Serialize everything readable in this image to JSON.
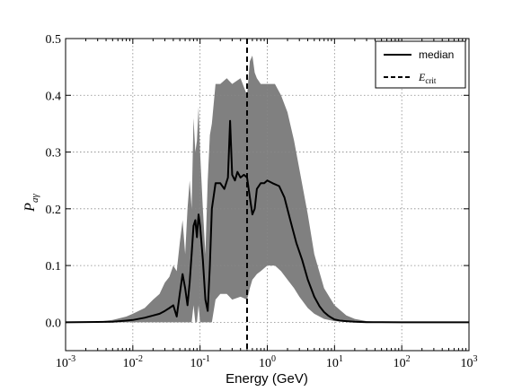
{
  "chart_data": {
    "type": "area",
    "xlabel": "Energy (GeV)",
    "ylabel": "P",
    "ylabel_sub": "aγ",
    "x_scale": "log",
    "xlim": [
      0.001,
      1000
    ],
    "ylim": [
      -0.05,
      0.5
    ],
    "y_ticks": [
      0.0,
      0.1,
      0.2,
      0.3,
      0.4,
      0.5
    ],
    "y_tick_labels": [
      "0.0",
      "0.1",
      "0.2",
      "0.3",
      "0.4",
      "0.5"
    ],
    "x_ticks": [
      0.001,
      0.01,
      0.1,
      1,
      10,
      100,
      1000
    ],
    "x_tick_labels": [
      {
        "base": "10",
        "exp": "-3"
      },
      {
        "base": "10",
        "exp": "-2"
      },
      {
        "base": "10",
        "exp": "-1"
      },
      {
        "base": "10",
        "exp": "0"
      },
      {
        "base": "10",
        "exp": "1"
      },
      {
        "base": "10",
        "exp": "2"
      },
      {
        "base": "10",
        "exp": "3"
      }
    ],
    "grid": true,
    "legend_position": "top-right",
    "legend": [
      {
        "label": "median",
        "style": "solid"
      },
      {
        "label": "E",
        "label_sub": "crit",
        "style": "dashed"
      }
    ],
    "vline_x": 0.5,
    "band_color": "#808080",
    "median": {
      "x": [
        0.001,
        0.003,
        0.005,
        0.008,
        0.01,
        0.015,
        0.02,
        0.025,
        0.03,
        0.035,
        0.04,
        0.045,
        0.05,
        0.055,
        0.06,
        0.065,
        0.07,
        0.075,
        0.08,
        0.085,
        0.09,
        0.095,
        0.1,
        0.11,
        0.12,
        0.13,
        0.14,
        0.15,
        0.17,
        0.2,
        0.23,
        0.26,
        0.28,
        0.3,
        0.33,
        0.36,
        0.4,
        0.45,
        0.5,
        0.55,
        0.6,
        0.65,
        0.7,
        0.8,
        0.9,
        1.0,
        1.2,
        1.5,
        1.8,
        2.2,
        2.7,
        3.3,
        4.0,
        5.0,
        6.0,
        7.0,
        8.0,
        9.0,
        10,
        12,
        15,
        20,
        30,
        50,
        100,
        1000
      ],
      "y": [
        0.0,
        0.0005,
        0.001,
        0.003,
        0.004,
        0.008,
        0.012,
        0.015,
        0.02,
        0.025,
        0.03,
        0.01,
        0.05,
        0.085,
        0.06,
        0.03,
        0.07,
        0.12,
        0.17,
        0.18,
        0.15,
        0.19,
        0.17,
        0.11,
        0.04,
        0.02,
        0.1,
        0.2,
        0.245,
        0.245,
        0.235,
        0.255,
        0.355,
        0.26,
        0.25,
        0.265,
        0.255,
        0.26,
        0.255,
        0.22,
        0.19,
        0.2,
        0.235,
        0.245,
        0.245,
        0.25,
        0.245,
        0.24,
        0.22,
        0.18,
        0.14,
        0.11,
        0.075,
        0.045,
        0.028,
        0.018,
        0.012,
        0.008,
        0.005,
        0.003,
        0.002,
        0.001,
        0.0003,
        0.0001,
        0.0,
        0.0
      ]
    },
    "band": {
      "x": [
        0.001,
        0.003,
        0.005,
        0.008,
        0.01,
        0.015,
        0.02,
        0.025,
        0.03,
        0.035,
        0.04,
        0.045,
        0.05,
        0.055,
        0.06,
        0.065,
        0.07,
        0.075,
        0.08,
        0.085,
        0.09,
        0.095,
        0.1,
        0.11,
        0.12,
        0.13,
        0.14,
        0.15,
        0.17,
        0.2,
        0.25,
        0.3,
        0.4,
        0.5,
        0.55,
        0.6,
        0.65,
        0.7,
        0.8,
        1.0,
        1.3,
        1.6,
        2.0,
        2.5,
        3.0,
        4.0,
        5.0,
        7.0,
        10,
        15,
        20,
        30,
        50,
        100,
        1000
      ],
      "upper": [
        0.0,
        0.001,
        0.004,
        0.01,
        0.015,
        0.025,
        0.04,
        0.05,
        0.07,
        0.08,
        0.1,
        0.09,
        0.14,
        0.18,
        0.12,
        0.2,
        0.25,
        0.2,
        0.36,
        0.3,
        0.32,
        0.38,
        0.3,
        0.2,
        0.12,
        0.25,
        0.33,
        0.35,
        0.42,
        0.42,
        0.43,
        0.42,
        0.43,
        0.4,
        0.46,
        0.47,
        0.44,
        0.43,
        0.42,
        0.42,
        0.42,
        0.4,
        0.37,
        0.32,
        0.27,
        0.19,
        0.12,
        0.06,
        0.03,
        0.012,
        0.006,
        0.002,
        0.0005,
        0.0001,
        0.0
      ],
      "lower": [
        0.0,
        0.0,
        0.0,
        0.0,
        0.0,
        0.0,
        0.0,
        0.0,
        0.0,
        0.0,
        0.0,
        0.0,
        0.0,
        0.0,
        0.0,
        0.0,
        0.0,
        0.0,
        0.03,
        0.0,
        0.0,
        0.03,
        0.0,
        0.0,
        0.0,
        0.0,
        0.0,
        0.0,
        0.04,
        0.05,
        0.05,
        0.04,
        0.045,
        0.04,
        0.06,
        0.075,
        0.08,
        0.085,
        0.09,
        0.1,
        0.1,
        0.09,
        0.075,
        0.06,
        0.045,
        0.025,
        0.015,
        0.006,
        0.002,
        0.0005,
        0.0002,
        0.0,
        0.0,
        0.0,
        0.0
      ]
    }
  }
}
